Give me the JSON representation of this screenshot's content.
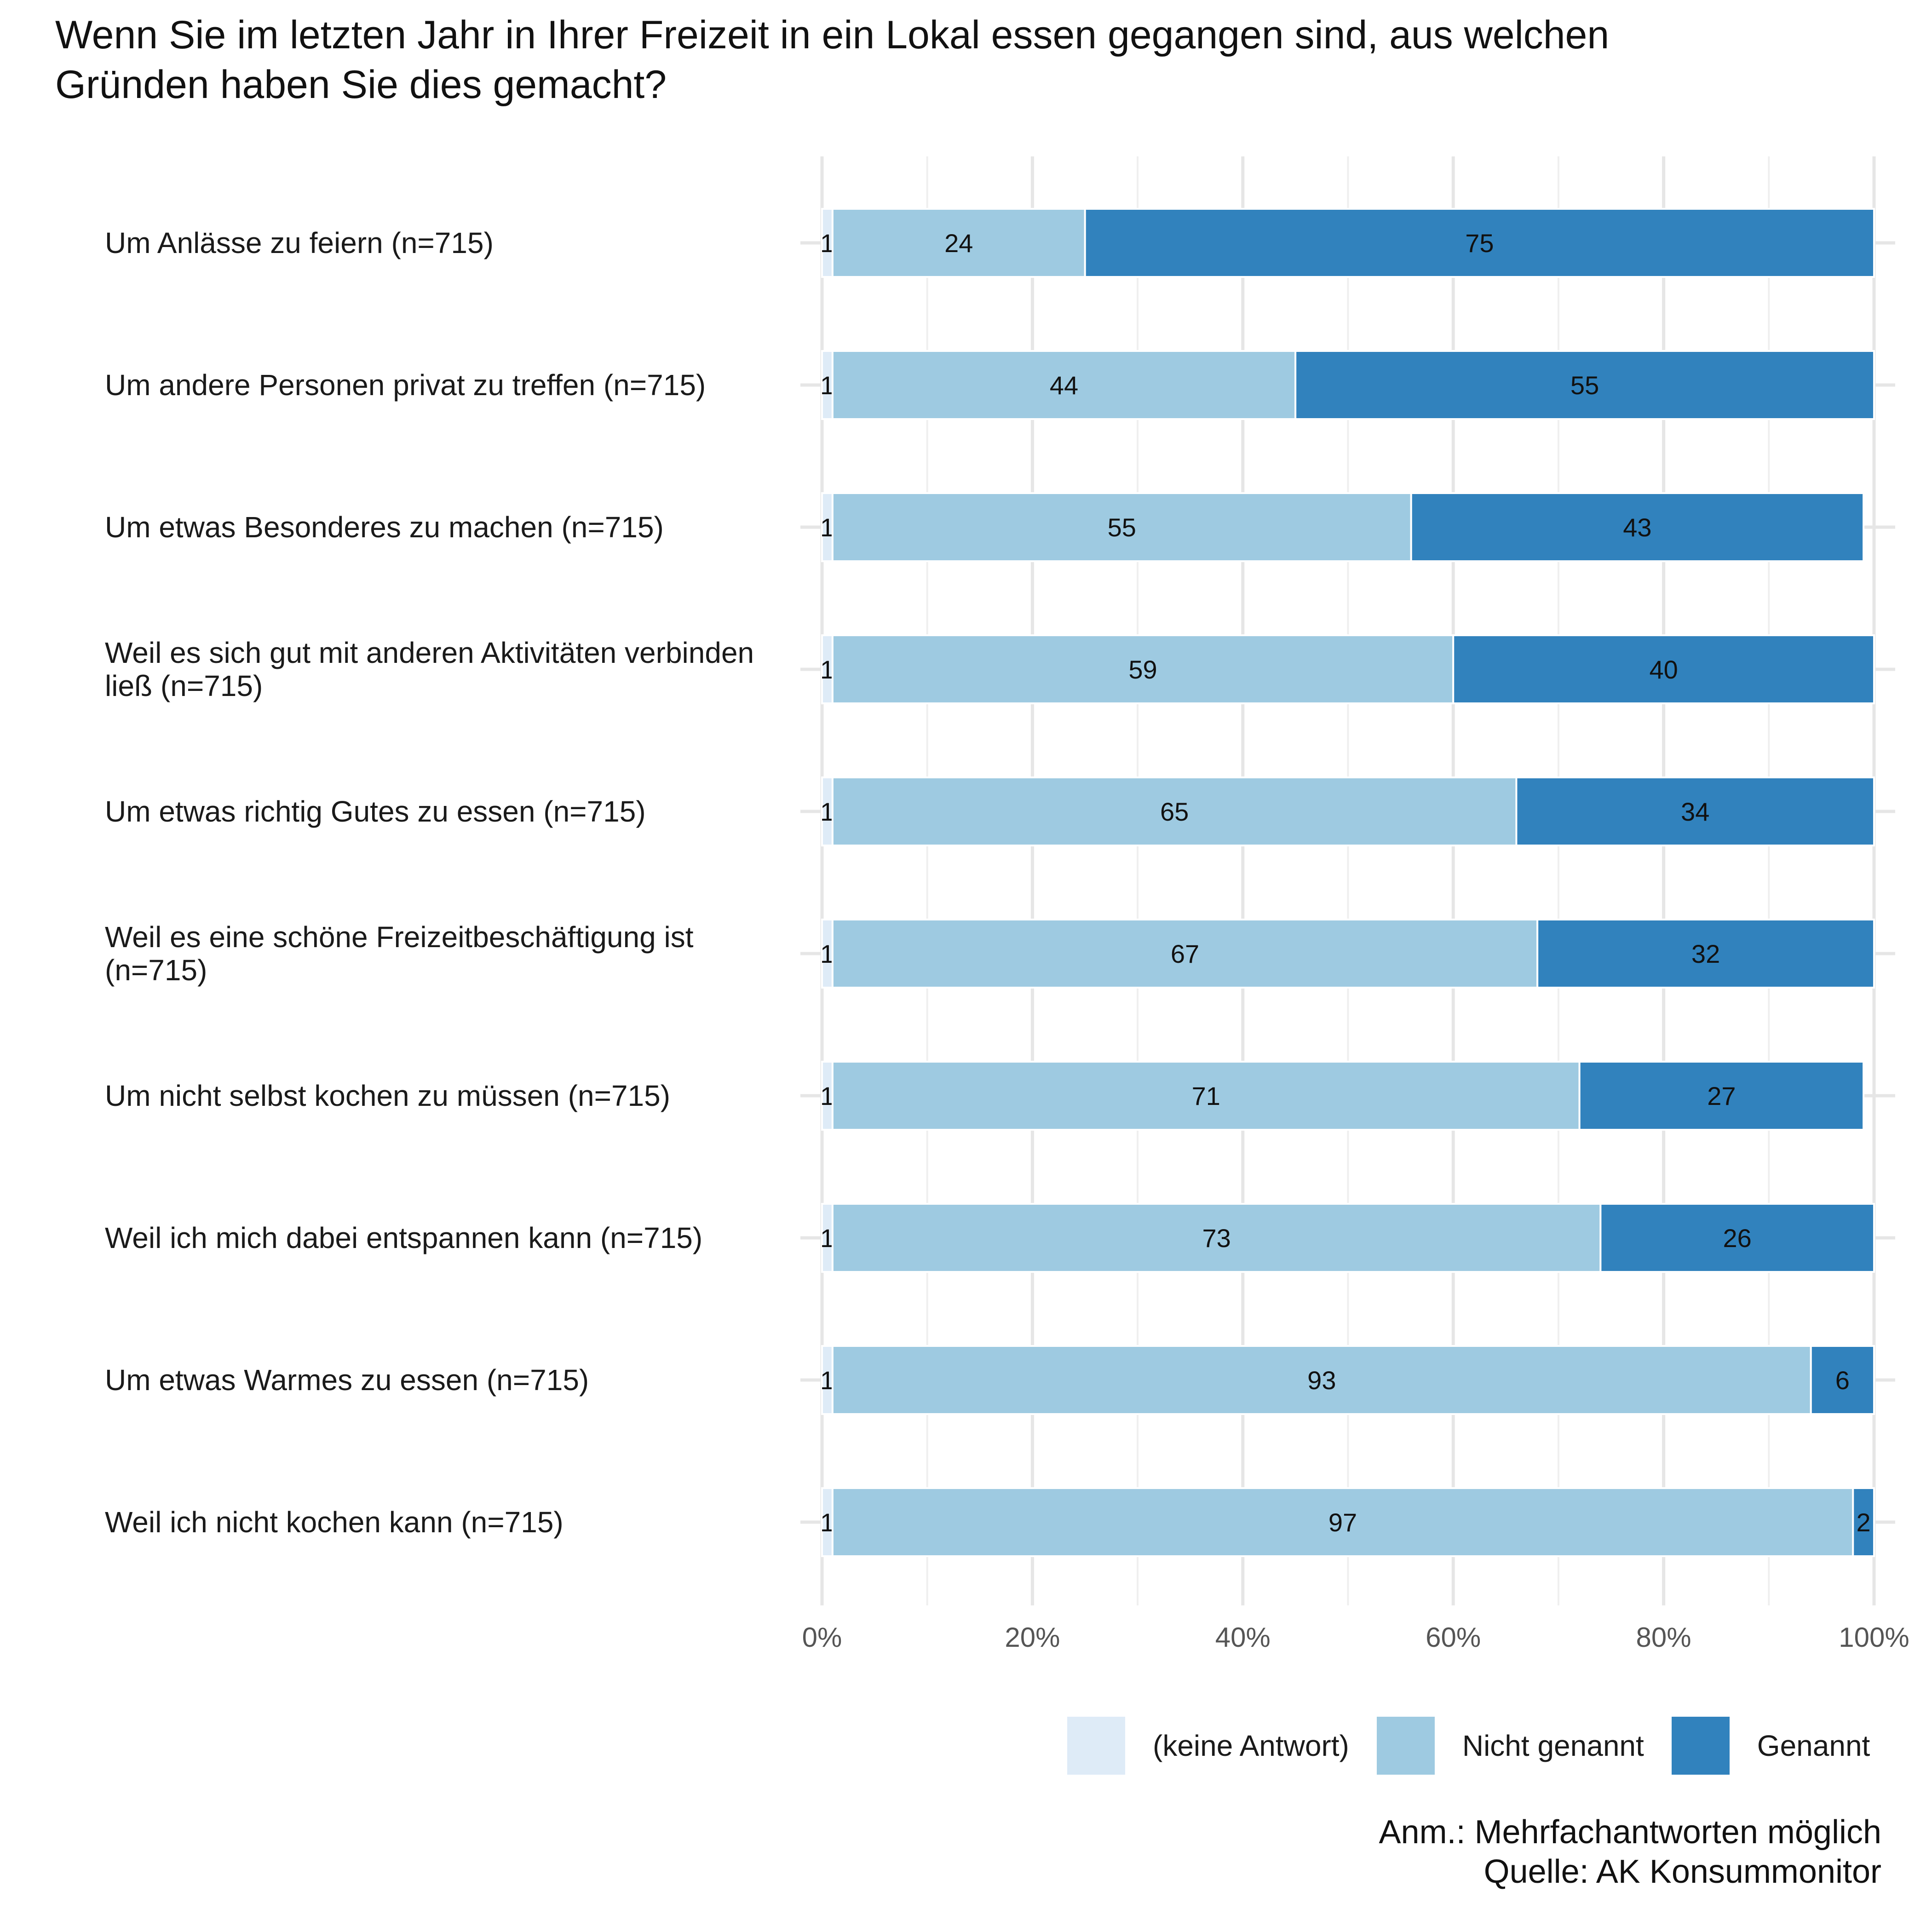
{
  "chart_data": {
    "type": "bar",
    "orientation": "horizontal",
    "stacked": true,
    "title": "Wenn Sie im letzten Jahr in Ihrer Freizeit in ein Lokal essen gegangen sind, aus welchen Gründen haben Sie dies gemacht?",
    "categories": [
      [
        "Um Anlässe zu feiern (n=715)"
      ],
      [
        "Um andere Personen privat zu treffen (n=715)"
      ],
      [
        "Um etwas Besonderes zu machen (n=715)"
      ],
      [
        "Weil es sich gut mit anderen Aktivitäten verbinden",
        "ließ (n=715)"
      ],
      [
        "Um etwas richtig Gutes zu essen (n=715)"
      ],
      [
        "Weil es eine schöne Freizeitbeschäftigung ist",
        "(n=715)"
      ],
      [
        "Um nicht selbst kochen zu müssen (n=715)"
      ],
      [
        "Weil ich mich dabei entspannen kann (n=715)"
      ],
      [
        "Um etwas Warmes zu essen (n=715)"
      ],
      [
        "Weil ich nicht kochen kann (n=715)"
      ]
    ],
    "series": [
      {
        "name": "(keine Antwort)",
        "color": "#deebf7",
        "values": [
          1,
          1,
          1,
          1,
          1,
          1,
          1,
          1,
          1,
          1
        ]
      },
      {
        "name": "Nicht genannt",
        "color": "#9ecae1",
        "values": [
          24,
          44,
          55,
          59,
          65,
          67,
          71,
          73,
          93,
          97
        ]
      },
      {
        "name": "Genannt",
        "color": "#3182bd",
        "values": [
          75,
          55,
          43,
          40,
          34,
          32,
          27,
          26,
          6,
          2
        ]
      }
    ],
    "xlim": [
      0,
      100
    ],
    "x_ticks": [
      "0%",
      "20%",
      "40%",
      "60%",
      "80%",
      "100%"
    ],
    "legend_position": "bottom-right",
    "grid": true
  },
  "notes": {
    "line1": "Anm.: Mehrfachantworten möglich",
    "line2": "Quelle: AK Konsummonitor"
  }
}
